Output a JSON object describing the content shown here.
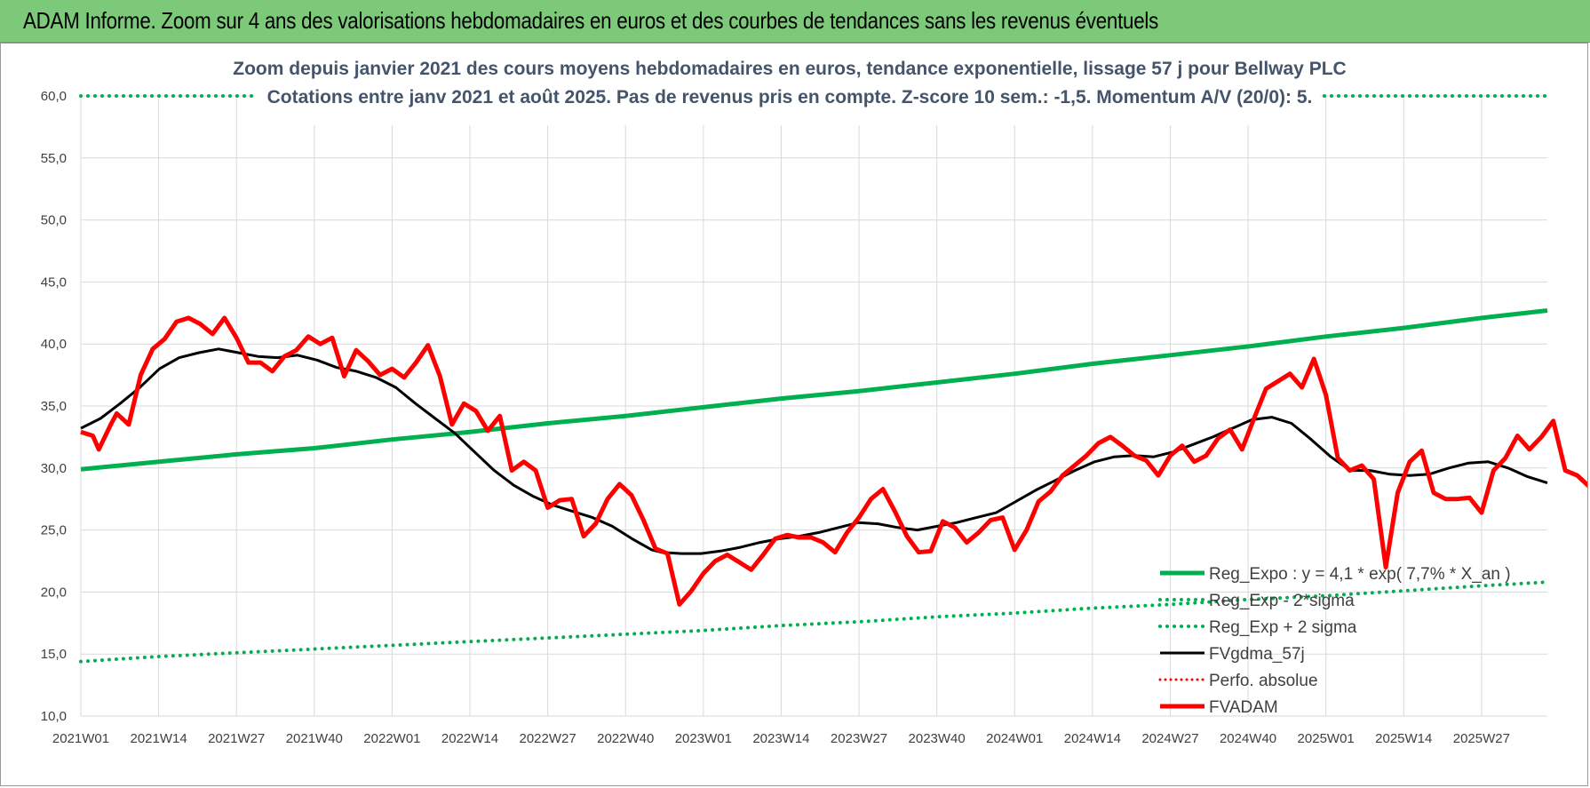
{
  "header": {
    "title": "ADAM Informe. Zoom sur 4 ans des valorisations hebdomadaires en euros et des courbes de tendances sans les revenus éventuels"
  },
  "chart_data": {
    "type": "line",
    "subtitle_line1": "Zoom depuis janvier 2021 des cours moyens hebdomadaires en euros, tendance exponentielle, lissage 57 j pour Bellway PLC",
    "subtitle_line2": "Cotations entre janv 2021 et août 2025.  Pas de revenus pris en compte. Z-score 10 sem.: -1,5. Momentum A/V (20/0): 5.",
    "ylim": [
      10,
      60
    ],
    "y_ticks": [
      "10,0",
      "15,0",
      "20,0",
      "25,0",
      "30,0",
      "35,0",
      "40,0",
      "45,0",
      "50,0",
      "55,0",
      "60,0"
    ],
    "x_ticks": [
      "2021W01",
      "2021W14",
      "2021W27",
      "2021W40",
      "2022W01",
      "2022W14",
      "2022W27",
      "2022W40",
      "2023W01",
      "2023W14",
      "2023W27",
      "2023W40",
      "2024W01",
      "2024W14",
      "2024W27",
      "2024W40",
      "2025W01",
      "2025W14",
      "2025W27"
    ],
    "week_count": 246,
    "grid": true,
    "legend_position": "bottom-right",
    "colors": {
      "green": "#00b050",
      "black": "#000000",
      "red": "#ff0000",
      "grid": "#d9d9d9"
    },
    "series": [
      {
        "name": "Reg_Expo : y = 4,1 * exp( 7,7% *  X_an )",
        "style": "solid-green",
        "points": [
          [
            0,
            29.9
          ],
          [
            13,
            30.5
          ],
          [
            26,
            31.1
          ],
          [
            39,
            31.6
          ],
          [
            52,
            32.3
          ],
          [
            65,
            32.9
          ],
          [
            78,
            33.6
          ],
          [
            91,
            34.2
          ],
          [
            104,
            34.9
          ],
          [
            117,
            35.6
          ],
          [
            130,
            36.2
          ],
          [
            143,
            36.9
          ],
          [
            156,
            37.6
          ],
          [
            169,
            38.4
          ],
          [
            182,
            39.1
          ],
          [
            195,
            39.8
          ],
          [
            208,
            40.6
          ],
          [
            221,
            41.3
          ],
          [
            234,
            42.1
          ],
          [
            245,
            42.7
          ]
        ]
      },
      {
        "name": "Reg_Exp - 2*sigma",
        "style": "dotted-green",
        "points": [
          [
            0,
            14.4
          ],
          [
            13,
            14.8
          ],
          [
            26,
            15.1
          ],
          [
            39,
            15.4
          ],
          [
            52,
            15.7
          ],
          [
            65,
            16.0
          ],
          [
            78,
            16.3
          ],
          [
            91,
            16.6
          ],
          [
            104,
            16.9
          ],
          [
            117,
            17.3
          ],
          [
            130,
            17.6
          ],
          [
            143,
            18.0
          ],
          [
            156,
            18.3
          ],
          [
            169,
            18.7
          ],
          [
            182,
            19.0
          ],
          [
            195,
            19.4
          ],
          [
            208,
            19.7
          ],
          [
            221,
            20.1
          ],
          [
            234,
            20.5
          ],
          [
            245,
            20.8
          ]
        ]
      },
      {
        "name": "Reg_Exp + 2 sigma",
        "style": "dotted-green",
        "points": [
          [
            0,
            60.0
          ],
          [
            245,
            60.0
          ]
        ]
      },
      {
        "name": "FVgdma_57j",
        "style": "solid-black",
        "points": [
          [
            0,
            33.2
          ],
          [
            4,
            34.0
          ],
          [
            8,
            35.2
          ],
          [
            12,
            36.5
          ],
          [
            16,
            38.0
          ],
          [
            20,
            38.9
          ],
          [
            24,
            39.3
          ],
          [
            28,
            39.6
          ],
          [
            32,
            39.3
          ],
          [
            36,
            39.0
          ],
          [
            40,
            38.9
          ],
          [
            44,
            39.1
          ],
          [
            48,
            38.7
          ],
          [
            52,
            38.1
          ],
          [
            56,
            37.8
          ],
          [
            60,
            37.3
          ],
          [
            64,
            36.5
          ],
          [
            68,
            35.2
          ],
          [
            72,
            34.0
          ],
          [
            76,
            32.8
          ],
          [
            80,
            31.3
          ],
          [
            84,
            29.8
          ],
          [
            88,
            28.6
          ],
          [
            92,
            27.7
          ],
          [
            96,
            27.0
          ],
          [
            100,
            26.5
          ],
          [
            104,
            26.0
          ],
          [
            108,
            25.3
          ],
          [
            112,
            24.3
          ],
          [
            116,
            23.4
          ],
          [
            118,
            23.2
          ],
          [
            122,
            23.1
          ],
          [
            126,
            23.1
          ],
          [
            130,
            23.3
          ],
          [
            134,
            23.6
          ],
          [
            138,
            24.0
          ],
          [
            142,
            24.3
          ],
          [
            146,
            24.5
          ],
          [
            150,
            24.8
          ],
          [
            154,
            25.2
          ],
          [
            158,
            25.6
          ],
          [
            162,
            25.5
          ],
          [
            166,
            25.2
          ],
          [
            170,
            25.0
          ],
          [
            174,
            25.3
          ],
          [
            178,
            25.6
          ],
          [
            182,
            26.0
          ],
          [
            186,
            26.4
          ],
          [
            190,
            27.3
          ],
          [
            194,
            28.2
          ],
          [
            198,
            29.0
          ],
          [
            202,
            29.8
          ],
          [
            206,
            30.5
          ],
          [
            210,
            30.9
          ],
          [
            214,
            31.0
          ],
          [
            218,
            30.9
          ],
          [
            222,
            31.3
          ],
          [
            226,
            31.9
          ],
          [
            230,
            32.5
          ],
          [
            234,
            33.2
          ],
          [
            238,
            33.9
          ],
          [
            242,
            34.1
          ],
          [
            246,
            33.6
          ],
          [
            250,
            32.3
          ],
          [
            254,
            30.9
          ],
          [
            258,
            29.8
          ],
          [
            262,
            29.8
          ],
          [
            266,
            29.5
          ],
          [
            270,
            29.4
          ],
          [
            274,
            29.5
          ],
          [
            278,
            30.0
          ],
          [
            282,
            30.4
          ],
          [
            286,
            30.5
          ],
          [
            290,
            30.0
          ],
          [
            294,
            29.3
          ],
          [
            298,
            28.8
          ]
        ]
      },
      {
        "name": "Perfo. absolue",
        "style": "dotted-red",
        "points": []
      },
      {
        "name": "FVADAM",
        "style": "solid-red",
        "points": [
          [
            0,
            32.9
          ],
          [
            2,
            32.6
          ],
          [
            3,
            31.5
          ],
          [
            5,
            33.5
          ],
          [
            6,
            34.4
          ],
          [
            8,
            33.5
          ],
          [
            10,
            37.5
          ],
          [
            12,
            39.6
          ],
          [
            14,
            40.4
          ],
          [
            16,
            41.8
          ],
          [
            18,
            42.1
          ],
          [
            20,
            41.6
          ],
          [
            22,
            40.8
          ],
          [
            24,
            42.1
          ],
          [
            26,
            40.5
          ],
          [
            28,
            38.5
          ],
          [
            30,
            38.5
          ],
          [
            32,
            37.8
          ],
          [
            34,
            39.0
          ],
          [
            36,
            39.5
          ],
          [
            38,
            40.6
          ],
          [
            40,
            40.0
          ],
          [
            42,
            40.5
          ],
          [
            44,
            37.4
          ],
          [
            46,
            39.5
          ],
          [
            48,
            38.6
          ],
          [
            50,
            37.5
          ],
          [
            52,
            38.0
          ],
          [
            54,
            37.3
          ],
          [
            56,
            38.5
          ],
          [
            58,
            39.9
          ],
          [
            60,
            37.4
          ],
          [
            62,
            33.5
          ],
          [
            64,
            35.2
          ],
          [
            66,
            34.6
          ],
          [
            68,
            33.0
          ],
          [
            70,
            34.2
          ],
          [
            72,
            29.8
          ],
          [
            74,
            30.5
          ],
          [
            76,
            29.8
          ],
          [
            78,
            26.8
          ],
          [
            80,
            27.4
          ],
          [
            82,
            27.5
          ],
          [
            84,
            24.5
          ],
          [
            86,
            25.5
          ],
          [
            88,
            27.5
          ],
          [
            90,
            28.7
          ],
          [
            92,
            27.8
          ],
          [
            94,
            25.8
          ],
          [
            96,
            23.5
          ],
          [
            98,
            23.1
          ],
          [
            100,
            19.0
          ],
          [
            102,
            20.1
          ],
          [
            104,
            21.5
          ],
          [
            106,
            22.5
          ],
          [
            108,
            23.0
          ],
          [
            110,
            22.4
          ],
          [
            112,
            21.8
          ],
          [
            114,
            23.0
          ],
          [
            116,
            24.3
          ],
          [
            118,
            24.6
          ],
          [
            120,
            24.4
          ],
          [
            122,
            24.4
          ],
          [
            124,
            24.0
          ],
          [
            126,
            23.2
          ],
          [
            128,
            24.8
          ],
          [
            130,
            26.0
          ],
          [
            132,
            27.5
          ],
          [
            134,
            28.3
          ],
          [
            136,
            26.5
          ],
          [
            138,
            24.5
          ],
          [
            140,
            23.2
          ],
          [
            142,
            23.3
          ],
          [
            144,
            25.7
          ],
          [
            146,
            25.2
          ],
          [
            148,
            24.0
          ],
          [
            150,
            24.8
          ],
          [
            152,
            25.8
          ],
          [
            154,
            26.0
          ],
          [
            156,
            23.4
          ],
          [
            158,
            25.0
          ],
          [
            160,
            27.3
          ],
          [
            162,
            28.1
          ],
          [
            164,
            29.4
          ],
          [
            166,
            30.2
          ],
          [
            168,
            31.0
          ],
          [
            170,
            32.0
          ],
          [
            172,
            32.5
          ],
          [
            174,
            31.8
          ],
          [
            176,
            31.0
          ],
          [
            178,
            30.6
          ],
          [
            180,
            29.4
          ],
          [
            182,
            31.0
          ],
          [
            184,
            31.8
          ],
          [
            186,
            30.5
          ],
          [
            188,
            31.0
          ],
          [
            190,
            32.4
          ],
          [
            192,
            33.1
          ],
          [
            194,
            31.5
          ],
          [
            196,
            34.0
          ],
          [
            198,
            36.4
          ],
          [
            200,
            37.0
          ],
          [
            202,
            37.6
          ],
          [
            204,
            36.5
          ],
          [
            206,
            38.8
          ],
          [
            208,
            35.9
          ],
          [
            210,
            30.8
          ],
          [
            212,
            29.8
          ],
          [
            214,
            30.2
          ],
          [
            216,
            29.1
          ],
          [
            218,
            22.0
          ],
          [
            220,
            28.0
          ],
          [
            222,
            30.5
          ],
          [
            224,
            31.4
          ],
          [
            226,
            28.0
          ],
          [
            228,
            27.5
          ],
          [
            230,
            27.5
          ],
          [
            232,
            27.6
          ],
          [
            234,
            26.4
          ],
          [
            236,
            29.8
          ],
          [
            238,
            30.8
          ],
          [
            240,
            32.6
          ],
          [
            242,
            31.5
          ],
          [
            244,
            32.5
          ],
          [
            246,
            33.8
          ],
          [
            248,
            29.8
          ],
          [
            250,
            29.4
          ],
          [
            252,
            28.5
          ],
          [
            254,
            27.7
          ]
        ]
      }
    ]
  }
}
